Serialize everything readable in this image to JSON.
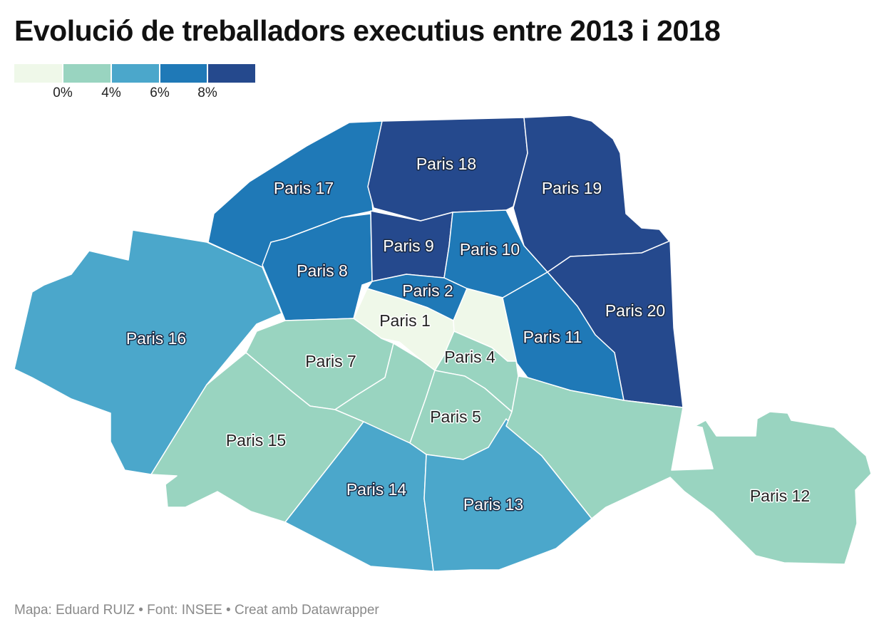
{
  "title": "Evolució de treballadors executius entre 2013 i 2018",
  "legend": {
    "colors": [
      "#eff8e9",
      "#99d4c0",
      "#4ba7cb",
      "#1f79b7",
      "#25498d"
    ],
    "ticks": [
      "0%",
      "4%",
      "6%",
      "8%"
    ]
  },
  "regions": [
    {
      "id": "1",
      "label": "Paris 1",
      "color": "#eff8e9",
      "bin": 0
    },
    {
      "id": "2",
      "label": "Paris 2",
      "color": "#1f79b7",
      "bin": 3
    },
    {
      "id": "3",
      "label": "",
      "color": "#eff8e9",
      "bin": 0
    },
    {
      "id": "4",
      "label": "Paris 4",
      "color": "#99d4c0",
      "bin": 1
    },
    {
      "id": "5",
      "label": "Paris 5",
      "color": "#99d4c0",
      "bin": 1
    },
    {
      "id": "6",
      "label": "",
      "color": "#99d4c0",
      "bin": 1
    },
    {
      "id": "7",
      "label": "Paris 7",
      "color": "#99d4c0",
      "bin": 1
    },
    {
      "id": "8",
      "label": "Paris 8",
      "color": "#1f79b7",
      "bin": 3
    },
    {
      "id": "9",
      "label": "Paris 9",
      "color": "#25498d",
      "bin": 4
    },
    {
      "id": "10",
      "label": "Paris 10",
      "color": "#1f79b7",
      "bin": 3
    },
    {
      "id": "11",
      "label": "Paris 11",
      "color": "#1f79b7",
      "bin": 3
    },
    {
      "id": "12",
      "label": "Paris 12",
      "color": "#99d4c0",
      "bin": 1
    },
    {
      "id": "13",
      "label": "Paris 13",
      "color": "#4ba7cb",
      "bin": 2
    },
    {
      "id": "14",
      "label": "Paris 14",
      "color": "#4ba7cb",
      "bin": 2
    },
    {
      "id": "15",
      "label": "Paris 15",
      "color": "#99d4c0",
      "bin": 1
    },
    {
      "id": "16",
      "label": "Paris 16",
      "color": "#4ba7cb",
      "bin": 2
    },
    {
      "id": "17",
      "label": "Paris 17",
      "color": "#1f79b7",
      "bin": 3
    },
    {
      "id": "18",
      "label": "Paris 18",
      "color": "#25498d",
      "bin": 4
    },
    {
      "id": "19",
      "label": "Paris 19",
      "color": "#25498d",
      "bin": 4
    },
    {
      "id": "20",
      "label": "Paris 20",
      "color": "#25498d",
      "bin": 4
    }
  ],
  "footer": "Mapa: Eduard RUIZ • Font: INSEE • Creat amb Datawrapper"
}
